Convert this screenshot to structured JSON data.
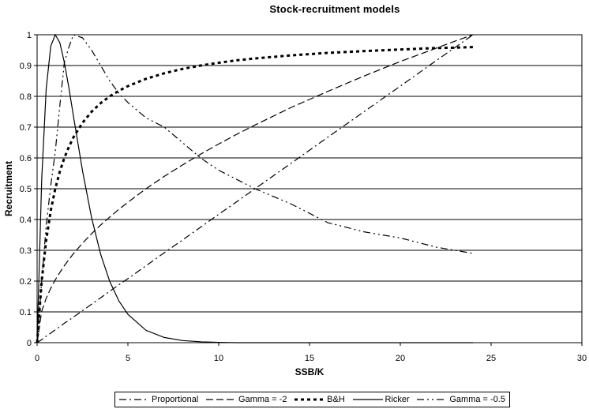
{
  "colors": {
    "ink": "#000000",
    "background": "#ffffff"
  },
  "chart_data": {
    "type": "line",
    "title": "Stock-recruitment models",
    "xlabel": "SSB/K",
    "ylabel": "Recruitment",
    "xlim": [
      0,
      30
    ],
    "ylim": [
      0,
      1
    ],
    "x_ticks": [
      "0",
      "5",
      "10",
      "15",
      "20",
      "25",
      "30"
    ],
    "y_ticks": [
      "0",
      "0.1",
      "0.2",
      "0.3",
      "0.4",
      "0.5",
      "0.6",
      "0.7",
      "0.8",
      "0.9",
      "1"
    ],
    "grid": "horizontal",
    "legend_position": "bottom",
    "x": [
      0,
      0.25,
      0.5,
      0.75,
      1,
      1.25,
      1.5,
      1.75,
      2,
      2.5,
      3,
      3.5,
      4,
      4.5,
      5,
      6,
      7,
      8,
      9,
      10,
      11,
      12,
      14,
      16,
      18,
      20,
      22,
      23,
      24
    ],
    "series": [
      {
        "name": "Proportional",
        "line_style": "dash-dot",
        "values": [
          0,
          0.01,
          0.021,
          0.031,
          0.042,
          0.052,
          0.063,
          0.073,
          0.083,
          0.104,
          0.125,
          0.146,
          0.167,
          0.188,
          0.208,
          0.25,
          0.292,
          0.333,
          0.375,
          0.417,
          0.458,
          0.5,
          0.583,
          0.667,
          0.75,
          0.833,
          0.917,
          0.958,
          1
        ]
      },
      {
        "name": "Gamma = -2",
        "line_style": "dashed",
        "values": [
          0,
          0.102,
          0.144,
          0.177,
          0.204,
          0.228,
          0.25,
          0.27,
          0.289,
          0.323,
          0.354,
          0.382,
          0.408,
          0.433,
          0.456,
          0.5,
          0.54,
          0.577,
          0.612,
          0.645,
          0.677,
          0.707,
          0.764,
          0.816,
          0.866,
          0.913,
          0.957,
          0.979,
          1
        ]
      },
      {
        "name": "B&H",
        "line_style": "thick-dotted",
        "values": [
          0,
          0.2,
          0.333,
          0.429,
          0.5,
          0.556,
          0.6,
          0.636,
          0.667,
          0.714,
          0.75,
          0.778,
          0.8,
          0.818,
          0.833,
          0.857,
          0.875,
          0.889,
          0.9,
          0.909,
          0.917,
          0.923,
          0.933,
          0.941,
          0.947,
          0.952,
          0.957,
          0.958,
          0.96
        ]
      },
      {
        "name": "Ricker",
        "line_style": "solid",
        "values": [
          0,
          0.529,
          0.824,
          0.963,
          1,
          0.974,
          0.91,
          0.827,
          0.736,
          0.558,
          0.406,
          0.287,
          0.199,
          0.136,
          0.092,
          0.04,
          0.017,
          0.007,
          0.003,
          0.001,
          0,
          0,
          0,
          0,
          0,
          0,
          0,
          0,
          0
        ]
      },
      {
        "name": "Gamma = -0.5",
        "line_style": "dash-dot-dot",
        "values": [
          0,
          0.2,
          0.38,
          0.51,
          0.62,
          0.77,
          0.91,
          0.96,
          1.0,
          0.99,
          0.95,
          0.9,
          0.85,
          0.81,
          0.78,
          0.73,
          0.7,
          0.65,
          0.6,
          0.56,
          0.53,
          0.5,
          0.45,
          0.39,
          0.36,
          0.34,
          0.31,
          0.3,
          0.29
        ]
      }
    ]
  }
}
